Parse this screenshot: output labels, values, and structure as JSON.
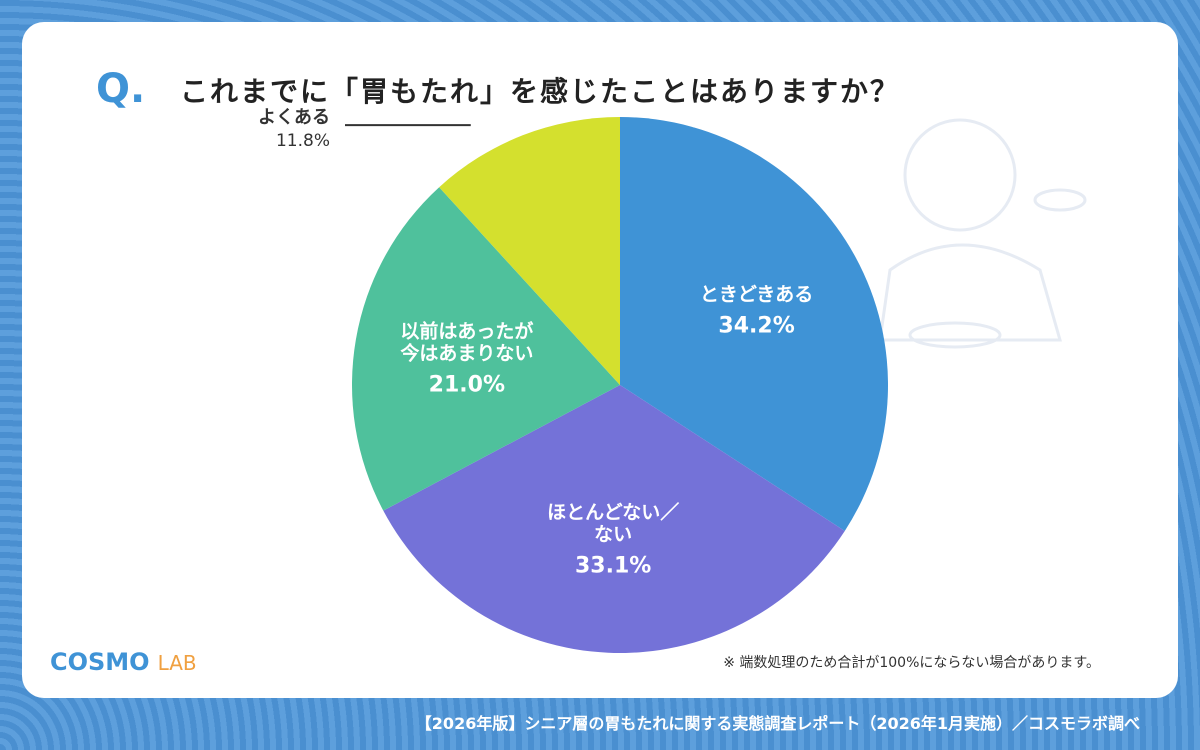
{
  "question_mark": "Q.",
  "chart_data": {
    "type": "pie",
    "title": "これまでに「胃もたれ」を感じたことはありますか？",
    "categories": [
      "ときどきある",
      "ほとんどない／\nない",
      "以前はあったが\n今はあまりない",
      "よくある"
    ],
    "values": [
      34.2,
      33.1,
      21,
      11.8
    ],
    "value_labels": [
      "34.2%",
      "33.1%",
      "21.0%",
      "11.8%"
    ],
    "colors": [
      "#3f93d6",
      "#7472d8",
      "#4fc19c",
      "#d4e02e"
    ]
  },
  "note": "※ 端数処理のため合計が100%にならない場合があります。",
  "logo": [
    "COSMO",
    "LAB"
  ],
  "footer": "【2026年版】シニア層の胃もたれに関する実態調査レポート（2026年1月実施）／コスモラボ調べ"
}
